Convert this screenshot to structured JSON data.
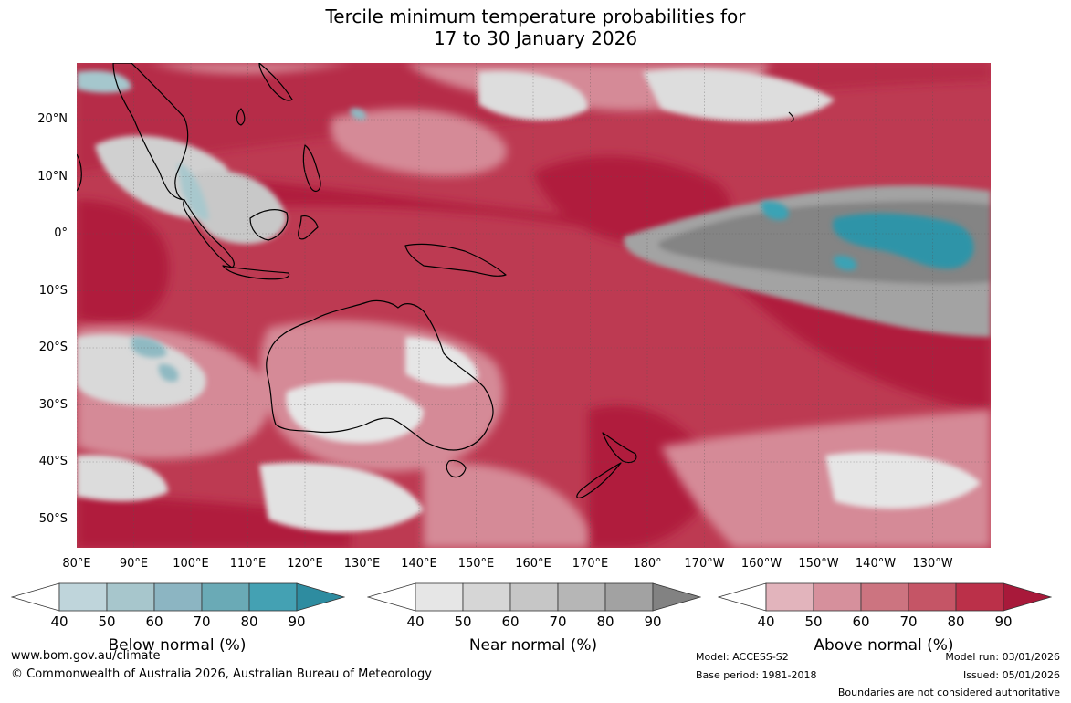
{
  "title_line1": "Tercile minimum temperature probabilities for",
  "title_line2": "17 to 30 January 2026",
  "lat_labels": [
    "20°N",
    "10°N",
    "0°",
    "10°S",
    "20°S",
    "30°S",
    "40°S",
    "50°S"
  ],
  "lon_labels": [
    "80°E",
    "90°E",
    "100°E",
    "110°E",
    "120°E",
    "130°E",
    "140°E",
    "150°E",
    "160°E",
    "170°E",
    "180°",
    "170°W",
    "160°W",
    "150°W",
    "140°W",
    "130°W"
  ],
  "colorbars": [
    {
      "title": "Below normal (%)",
      "ticks": [
        "40",
        "50",
        "60",
        "70",
        "80",
        "90"
      ],
      "colors": [
        "#ffffff",
        "#bfd5db",
        "#a7c6cc",
        "#8cb5c2",
        "#6aaab6",
        "#44a1b3",
        "#2e8ca0"
      ]
    },
    {
      "title": "Near normal (%)",
      "ticks": [
        "40",
        "50",
        "60",
        "70",
        "80",
        "90"
      ],
      "colors": [
        "#ffffff",
        "#e6e6e6",
        "#d6d6d6",
        "#c6c6c6",
        "#b6b6b6",
        "#a2a2a2",
        "#828282"
      ]
    },
    {
      "title": "Above normal (%)",
      "ticks": [
        "40",
        "50",
        "60",
        "70",
        "80",
        "90"
      ],
      "colors": [
        "#ffffff",
        "#e2b4bc",
        "#d6909c",
        "#cc7480",
        "#c55566",
        "#bb3049",
        "#a8193a"
      ]
    }
  ],
  "footer": {
    "url": "www.bom.gov.au/climate",
    "copyright": "© Commonwealth of Australia 2026, Australian Bureau of Meteorology",
    "model": "Model: ACCESS-S2",
    "base_period": "Base period: 1981-2018",
    "model_run": "Model run: 03/01/2026",
    "issued": "Issued: 05/01/2026",
    "disclaimer": "Boundaries are not considered authoritative"
  }
}
